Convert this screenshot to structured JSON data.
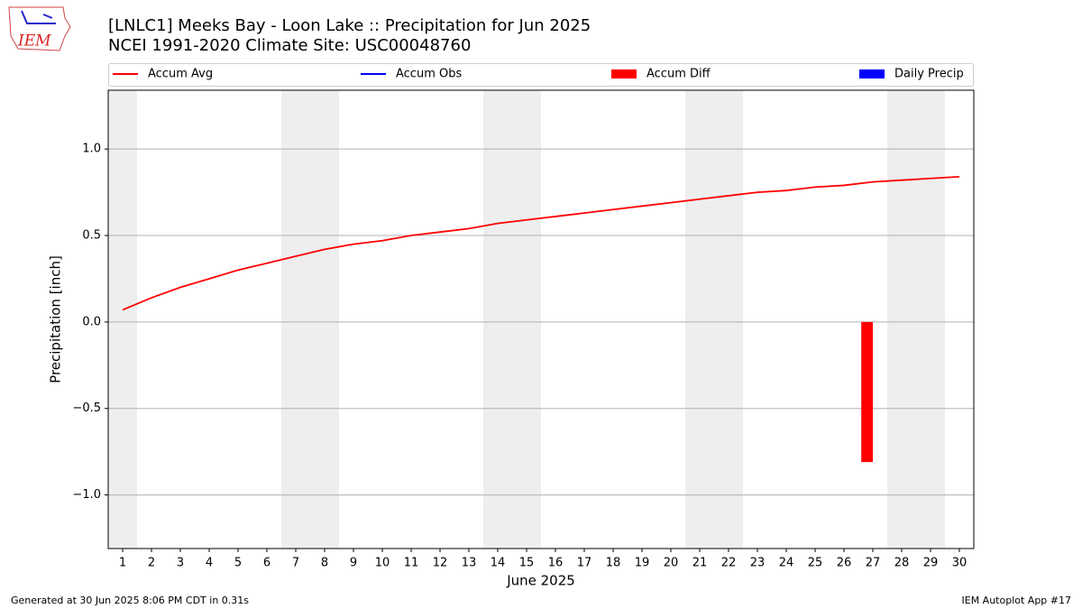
{
  "logo": "IEM",
  "footer_left": "Generated at 30 Jun 2025 8:06 PM CDT in 0.31s",
  "footer_right": "IEM Autoplot App #17",
  "chart_data": {
    "type": "line",
    "title": "[LNLC1] Meeks Bay - Loon Lake :: Precipitation for Jun 2025",
    "subtitle": "NCEI 1991-2020 Climate Site: USC00048760",
    "xlabel": "June 2025",
    "ylabel": "Precipitation [inch]",
    "x": [
      1,
      2,
      3,
      4,
      5,
      6,
      7,
      8,
      9,
      10,
      11,
      12,
      13,
      14,
      15,
      16,
      17,
      18,
      19,
      20,
      21,
      22,
      23,
      24,
      25,
      26,
      27,
      28,
      29,
      30
    ],
    "xlim": [
      0.5,
      30.5
    ],
    "xticks": [
      1,
      2,
      3,
      4,
      5,
      6,
      7,
      8,
      9,
      10,
      11,
      12,
      13,
      14,
      15,
      16,
      17,
      18,
      19,
      20,
      21,
      22,
      23,
      24,
      25,
      26,
      27,
      28,
      29,
      30
    ],
    "ylim": [
      -1.31,
      1.34
    ],
    "yticks": [
      {
        "value": -1.0,
        "label": "−1.0"
      },
      {
        "value": -0.5,
        "label": "−0.5"
      },
      {
        "value": 0,
        "label": "0.0"
      },
      {
        "value": 0.5,
        "label": "0.5"
      },
      {
        "value": 1.0,
        "label": "1.0"
      }
    ],
    "grid": true,
    "shaded_days": [
      1,
      7,
      8,
      14,
      15,
      21,
      22,
      28,
      29
    ],
    "series": [
      {
        "name": "Accum Avg",
        "type": "line",
        "color": "#ff0000",
        "values": [
          0.07,
          0.14,
          0.2,
          0.25,
          0.3,
          0.34,
          0.38,
          0.42,
          0.45,
          0.47,
          0.5,
          0.52,
          0.54,
          0.57,
          0.59,
          0.61,
          0.63,
          0.65,
          0.67,
          0.69,
          0.71,
          0.73,
          0.75,
          0.76,
          0.78,
          0.79,
          0.81,
          0.82,
          0.83,
          0.84
        ]
      },
      {
        "name": "Accum Obs",
        "type": "line",
        "color": "#0000ff",
        "values": [
          null,
          null,
          null,
          null,
          null,
          null,
          null,
          null,
          null,
          null,
          null,
          null,
          null,
          null,
          null,
          null,
          null,
          null,
          null,
          null,
          null,
          null,
          null,
          null,
          null,
          null,
          null,
          null,
          null,
          null
        ]
      },
      {
        "name": "Accum Diff",
        "type": "bar",
        "color": "#ff0000",
        "values": [
          null,
          null,
          null,
          null,
          null,
          null,
          null,
          null,
          null,
          null,
          null,
          null,
          null,
          null,
          null,
          null,
          null,
          null,
          null,
          null,
          null,
          null,
          null,
          null,
          null,
          null,
          -0.81,
          null,
          null,
          null
        ]
      },
      {
        "name": "Daily Precip",
        "type": "bar",
        "color": "#0000ff",
        "values": [
          null,
          null,
          null,
          null,
          null,
          null,
          null,
          null,
          null,
          null,
          null,
          null,
          null,
          null,
          null,
          null,
          null,
          null,
          null,
          null,
          null,
          null,
          null,
          null,
          null,
          null,
          null,
          null,
          null,
          null
        ]
      }
    ]
  }
}
